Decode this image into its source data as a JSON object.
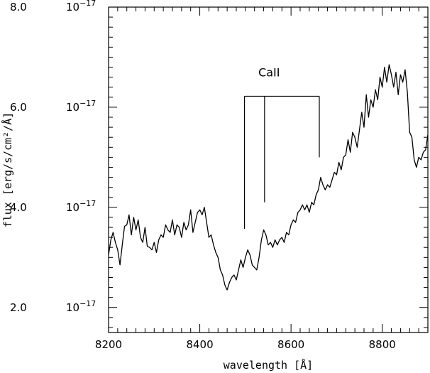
{
  "chart_data": {
    "type": "line",
    "xlabel": "wavelength [Å]",
    "ylabel": "flux [erg/s/cm²/Å]",
    "xlim": [
      8200,
      8900
    ],
    "ylim": [
      1.5e-17,
      8e-17
    ],
    "grid": false,
    "x_ticks": [
      8200,
      8400,
      8600,
      8800
    ],
    "x_tick_labels": [
      "8200",
      "8400",
      "8600",
      "8800"
    ],
    "y_ticks": [
      2e-17,
      4e-17,
      6e-17,
      8e-17
    ],
    "y_tick_labels": [
      {
        "mantissa": "2.0",
        "base": "10",
        "exp": "−17"
      },
      {
        "mantissa": "4.0",
        "base": "10",
        "exp": "−17"
      },
      {
        "mantissa": "6.0",
        "base": "10",
        "exp": "−17"
      },
      {
        "mantissa": "8.0",
        "base": "10",
        "exp": "−17"
      }
    ],
    "annotations": [
      {
        "text": "CaII",
        "lines": [
          {
            "x": 8498,
            "y_bottom": 3.57e-17
          },
          {
            "x": 8542,
            "y_bottom": 4.1e-17
          },
          {
            "x": 8662,
            "y_bottom": 5e-17
          }
        ],
        "bar_y": 6.22e-17
      }
    ],
    "series": [
      {
        "x": [
          8200,
          8205,
          8210,
          8215,
          8220,
          8225,
          8230,
          8235,
          8240,
          8245,
          8250,
          8255,
          8260,
          8265,
          8270,
          8275,
          8280,
          8285,
          8290,
          8295,
          8300,
          8305,
          8310,
          8315,
          8320,
          8325,
          8330,
          8335,
          8340,
          8345,
          8350,
          8355,
          8360,
          8365,
          8370,
          8375,
          8380,
          8385,
          8390,
          8395,
          8400,
          8405,
          8410,
          8415,
          8420,
          8425,
          8430,
          8435,
          8440,
          8445,
          8450,
          8455,
          8460,
          8465,
          8470,
          8475,
          8480,
          8485,
          8490,
          8495,
          8500,
          8505,
          8510,
          8515,
          8520,
          8525,
          8530,
          8535,
          8540,
          8545,
          8550,
          8555,
          8560,
          8565,
          8570,
          8575,
          8580,
          8585,
          8590,
          8595,
          8600,
          8605,
          8610,
          8615,
          8620,
          8625,
          8630,
          8635,
          8640,
          8645,
          8650,
          8655,
          8660,
          8665,
          8670,
          8675,
          8680,
          8685,
          8690,
          8695,
          8700,
          8705,
          8710,
          8715,
          8720,
          8725,
          8730,
          8735,
          8740,
          8745,
          8750,
          8755,
          8760,
          8765,
          8770,
          8775,
          8780,
          8785,
          8790,
          8795,
          8800,
          8805,
          8810,
          8815,
          8820,
          8825,
          8830,
          8835,
          8840,
          8845,
          8850,
          8855,
          8860,
          8865,
          8870,
          8875,
          8880,
          8885,
          8890,
          8895,
          8900
        ],
        "y": [
          3.05e-17,
          3.35e-17,
          3.5e-17,
          3.3e-17,
          3.15e-17,
          2.85e-17,
          3.25e-17,
          3.62e-17,
          3.65e-17,
          3.85e-17,
          3.45e-17,
          3.8e-17,
          3.55e-17,
          3.75e-17,
          3.4e-17,
          3.3e-17,
          3.6e-17,
          3.22e-17,
          3.2e-17,
          3.15e-17,
          3.3e-17,
          3.1e-17,
          3.35e-17,
          3.45e-17,
          3.4e-17,
          3.65e-17,
          3.55e-17,
          3.5e-17,
          3.75e-17,
          3.45e-17,
          3.65e-17,
          3.6e-17,
          3.4e-17,
          3.7e-17,
          3.55e-17,
          3.65e-17,
          3.95e-17,
          3.5e-17,
          3.7e-17,
          3.9e-17,
          3.95e-17,
          3.85e-17,
          4e-17,
          3.7e-17,
          3.4e-17,
          3.45e-17,
          3.25e-17,
          3.1e-17,
          3e-17,
          2.75e-17,
          2.65e-17,
          2.45e-17,
          2.35e-17,
          2.5e-17,
          2.6e-17,
          2.65e-17,
          2.55e-17,
          2.75e-17,
          2.95e-17,
          2.8e-17,
          3e-17,
          3.15e-17,
          3.05e-17,
          2.85e-17,
          2.8e-17,
          2.75e-17,
          3e-17,
          3.35e-17,
          3.55e-17,
          3.45e-17,
          3.25e-17,
          3.3e-17,
          3.2e-17,
          3.35e-17,
          3.25e-17,
          3.35e-17,
          3.4e-17,
          3.3e-17,
          3.5e-17,
          3.45e-17,
          3.65e-17,
          3.75e-17,
          3.7e-17,
          3.9e-17,
          3.95e-17,
          4.05e-17,
          3.95e-17,
          4.05e-17,
          3.9e-17,
          4.1e-17,
          4.05e-17,
          4.25e-17,
          4.35e-17,
          4.6e-17,
          4.45e-17,
          4.35e-17,
          4.45e-17,
          4.4e-17,
          4.55e-17,
          4.7e-17,
          4.65e-17,
          4.9e-17,
          4.75e-17,
          5e-17,
          5.05e-17,
          5.35e-17,
          5.1e-17,
          5.5e-17,
          5.4e-17,
          5.2e-17,
          5.55e-17,
          5.9e-17,
          5.6e-17,
          6.25e-17,
          5.8e-17,
          6.15e-17,
          6e-17,
          6.35e-17,
          6.15e-17,
          6.6e-17,
          6.4e-17,
          6.8e-17,
          6.5e-17,
          6.85e-17,
          6.65e-17,
          6.4e-17,
          6.7e-17,
          6.25e-17,
          6.65e-17,
          6.5e-17,
          6.75e-17,
          6.3e-17,
          5.5e-17,
          5.4e-17,
          4.95e-17,
          4.8e-17,
          5e-17,
          4.95e-17,
          5.1e-17,
          5.15e-17,
          5.45e-17
        ]
      }
    ]
  }
}
